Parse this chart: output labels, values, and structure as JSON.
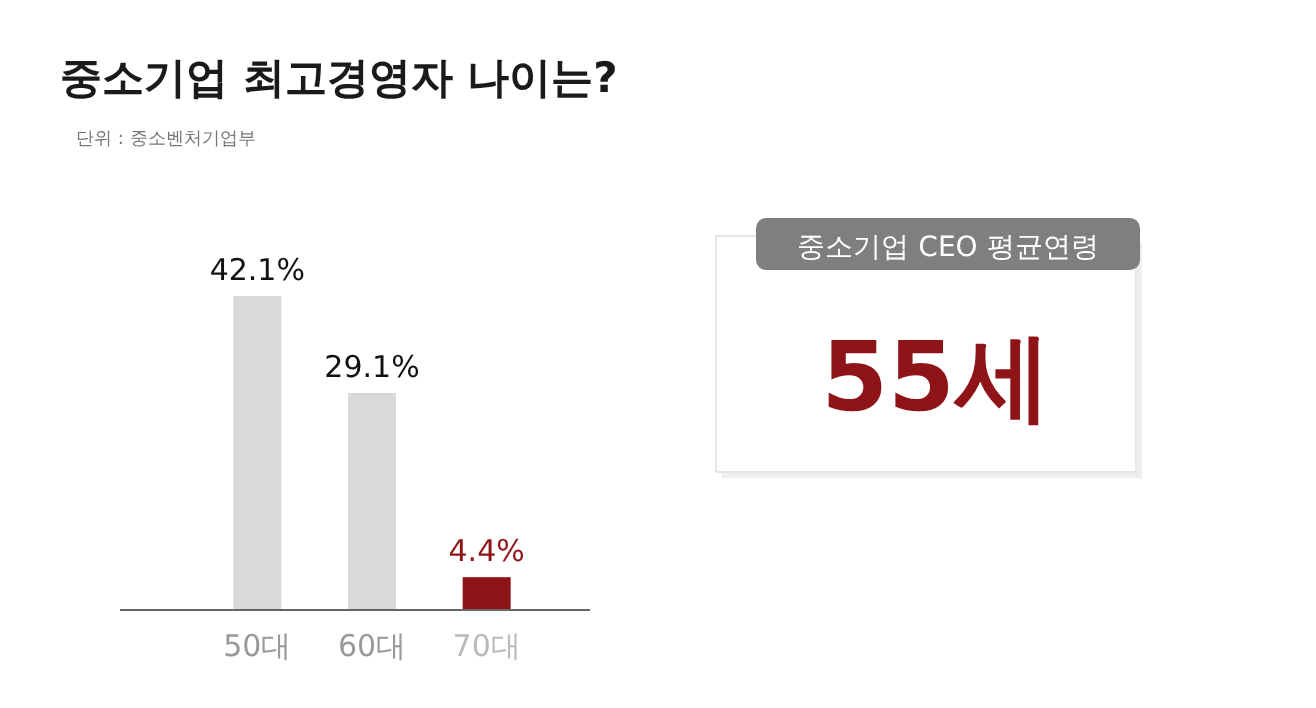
{
  "chart_data": {
    "type": "bar",
    "title": "중소기업 최고경영자 나이는?",
    "subtitle": "단위 : 중소벤처기업부",
    "categories": [
      "50대",
      "60대",
      "70대"
    ],
    "values": [
      42.1,
      29.1,
      4.4
    ],
    "value_labels": [
      "42.1%",
      "29.1%",
      "4.4%"
    ],
    "colors": [
      "#d9d9d9",
      "#d9d9d9",
      "#8e1418"
    ],
    "annotations": [
      "중소기업 CEO 평균연령",
      "55세"
    ]
  }
}
